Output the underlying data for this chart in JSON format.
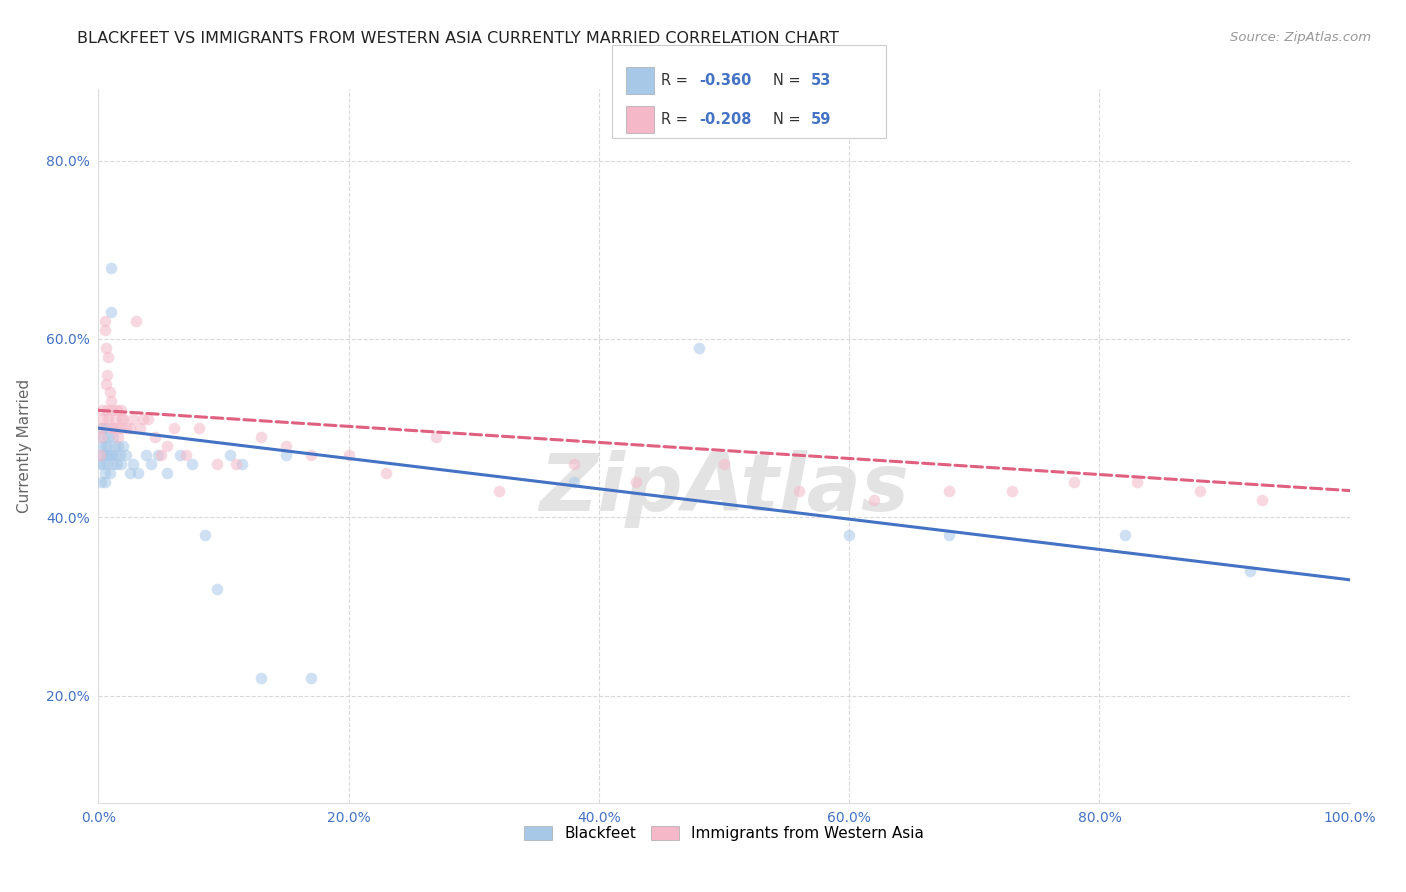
{
  "title": "BLACKFEET VS IMMIGRANTS FROM WESTERN ASIA CURRENTLY MARRIED CORRELATION CHART",
  "source": "Source: ZipAtlas.com",
  "ylabel": "Currently Married",
  "background_color": "#ffffff",
  "title_fontsize": 11.5,
  "source_fontsize": 9.5,
  "blackfeet_R": -0.36,
  "blackfeet_N": 53,
  "western_asia_R": -0.208,
  "western_asia_N": 59,
  "blackfeet_color": "#a8c8e8",
  "blackfeet_line_color": "#4472c4",
  "western_asia_color": "#f4b8c8",
  "western_asia_line_color": "#e06080",
  "blackfeet_x": [
    0.001,
    0.002,
    0.002,
    0.003,
    0.003,
    0.004,
    0.004,
    0.005,
    0.005,
    0.005,
    0.006,
    0.006,
    0.007,
    0.007,
    0.008,
    0.008,
    0.009,
    0.009,
    0.01,
    0.01,
    0.011,
    0.012,
    0.012,
    0.013,
    0.014,
    0.015,
    0.016,
    0.017,
    0.018,
    0.02,
    0.022,
    0.025,
    0.028,
    0.032,
    0.038,
    0.042,
    0.048,
    0.055,
    0.065,
    0.075,
    0.085,
    0.095,
    0.105,
    0.115,
    0.13,
    0.15,
    0.17,
    0.38,
    0.48,
    0.6,
    0.68,
    0.82,
    0.92
  ],
  "blackfeet_y": [
    0.46,
    0.48,
    0.44,
    0.47,
    0.5,
    0.46,
    0.49,
    0.45,
    0.48,
    0.44,
    0.47,
    0.5,
    0.46,
    0.48,
    0.47,
    0.49,
    0.45,
    0.47,
    0.68,
    0.63,
    0.47,
    0.49,
    0.46,
    0.48,
    0.47,
    0.46,
    0.48,
    0.47,
    0.46,
    0.48,
    0.47,
    0.45,
    0.46,
    0.45,
    0.47,
    0.46,
    0.47,
    0.45,
    0.47,
    0.46,
    0.38,
    0.32,
    0.47,
    0.46,
    0.22,
    0.47,
    0.22,
    0.44,
    0.59,
    0.38,
    0.38,
    0.38,
    0.34
  ],
  "western_asia_x": [
    0.001,
    0.002,
    0.002,
    0.003,
    0.004,
    0.005,
    0.005,
    0.006,
    0.006,
    0.007,
    0.007,
    0.008,
    0.008,
    0.009,
    0.01,
    0.01,
    0.011,
    0.012,
    0.013,
    0.014,
    0.015,
    0.016,
    0.017,
    0.018,
    0.019,
    0.02,
    0.022,
    0.025,
    0.028,
    0.03,
    0.033,
    0.036,
    0.04,
    0.045,
    0.05,
    0.055,
    0.06,
    0.07,
    0.08,
    0.095,
    0.11,
    0.13,
    0.15,
    0.17,
    0.2,
    0.23,
    0.27,
    0.32,
    0.38,
    0.43,
    0.5,
    0.56,
    0.62,
    0.68,
    0.73,
    0.78,
    0.83,
    0.88,
    0.93
  ],
  "western_asia_y": [
    0.47,
    0.5,
    0.49,
    0.52,
    0.51,
    0.62,
    0.61,
    0.59,
    0.55,
    0.56,
    0.52,
    0.58,
    0.51,
    0.54,
    0.53,
    0.5,
    0.52,
    0.5,
    0.51,
    0.5,
    0.52,
    0.49,
    0.5,
    0.52,
    0.51,
    0.51,
    0.5,
    0.5,
    0.51,
    0.62,
    0.5,
    0.51,
    0.51,
    0.49,
    0.47,
    0.48,
    0.5,
    0.47,
    0.5,
    0.46,
    0.46,
    0.49,
    0.48,
    0.47,
    0.47,
    0.45,
    0.49,
    0.43,
    0.46,
    0.44,
    0.46,
    0.43,
    0.42,
    0.43,
    0.43,
    0.44,
    0.44,
    0.43,
    0.42
  ],
  "xlim": [
    0.0,
    1.0
  ],
  "ylim": [
    0.08,
    0.88
  ],
  "xticks": [
    0.0,
    0.2,
    0.4,
    0.6,
    0.8,
    1.0
  ],
  "xtick_labels": [
    "0.0%",
    "20.0%",
    "40.0%",
    "60.0%",
    "80.0%",
    "100.0%"
  ],
  "yticks": [
    0.2,
    0.4,
    0.6,
    0.8
  ],
  "ytick_labels": [
    "20.0%",
    "40.0%",
    "60.0%",
    "80.0%"
  ],
  "grid_color": "#d0d0d0",
  "scatter_alpha": 0.55,
  "scatter_size": 70,
  "line_width": 2.2,
  "tick_color": "#4472c4",
  "label_color": "#666666",
  "watermark_color": "#e0e0e0",
  "watermark_alpha": 0.9
}
